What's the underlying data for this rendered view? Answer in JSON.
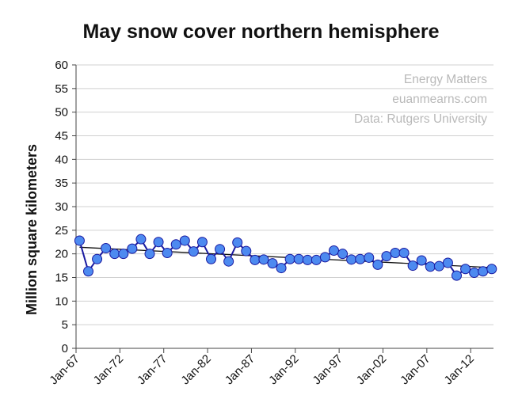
{
  "chart_data": {
    "type": "line",
    "title": "May snow cover northern hemisphere",
    "ylabel": "Million square kilometers",
    "xlabel": "",
    "ylim": [
      0,
      60
    ],
    "yticks": [
      0,
      5,
      10,
      15,
      20,
      25,
      30,
      35,
      40,
      45,
      50,
      55,
      60
    ],
    "xlim": [
      1967,
      2014.6
    ],
    "xticks": [
      {
        "label": "Jan-67",
        "x": 1967
      },
      {
        "label": "Jan-72",
        "x": 1972
      },
      {
        "label": "Jan-77",
        "x": 1977
      },
      {
        "label": "Jan-82",
        "x": 1982
      },
      {
        "label": "Jan-87",
        "x": 1987
      },
      {
        "label": "Jan-92",
        "x": 1992
      },
      {
        "label": "Jan-97",
        "x": 1997
      },
      {
        "label": "Jan-02",
        "x": 2002
      },
      {
        "label": "Jan-07",
        "x": 2007
      },
      {
        "label": "Jan-12",
        "x": 2012
      }
    ],
    "grid": "horizontal",
    "series": [
      {
        "x": [
          1967.4,
          1968.4,
          1969.4,
          1970.4,
          1971.4,
          1972.4,
          1973.4,
          1974.4,
          1975.4,
          1976.4,
          1977.4,
          1978.4,
          1979.4,
          1980.4,
          1981.4,
          1982.4,
          1983.4,
          1984.4,
          1985.4,
          1986.4,
          1987.4,
          1988.4,
          1989.4,
          1990.4,
          1991.4,
          1992.4,
          1993.4,
          1994.4,
          1995.4,
          1996.4,
          1997.4,
          1998.4,
          1999.4,
          2000.4,
          2001.4,
          2002.4,
          2003.4,
          2004.4,
          2005.4,
          2006.4,
          2007.4,
          2008.4,
          2009.4,
          2010.4,
          2011.4,
          2012.4,
          2013.4,
          2014.4
        ],
        "values": [
          22.8,
          16.3,
          18.9,
          21.2,
          20.0,
          20.0,
          21.1,
          23.1,
          20.0,
          22.5,
          20.2,
          22.0,
          22.8,
          20.5,
          22.5,
          18.9,
          21.0,
          18.4,
          22.4,
          20.6,
          18.7,
          18.8,
          18.0,
          17.0,
          18.9,
          18.9,
          18.7,
          18.7,
          19.3,
          20.7,
          20.0,
          18.8,
          18.9,
          19.2,
          17.7,
          19.5,
          20.2,
          20.2,
          17.5,
          18.6,
          17.3,
          17.4,
          18.1,
          15.4,
          16.8,
          16.0,
          16.3,
          16.8
        ],
        "color": "#1a1aa0",
        "marker_fill": "#4d8af0"
      }
    ],
    "trendline": {
      "x": [
        1967.4,
        2014.4
      ],
      "values": [
        21.4,
        17.1
      ],
      "color": "#111111"
    },
    "annotations": [
      "Energy Matters",
      "euanmearns.com",
      "Data: Rutgers University"
    ]
  }
}
